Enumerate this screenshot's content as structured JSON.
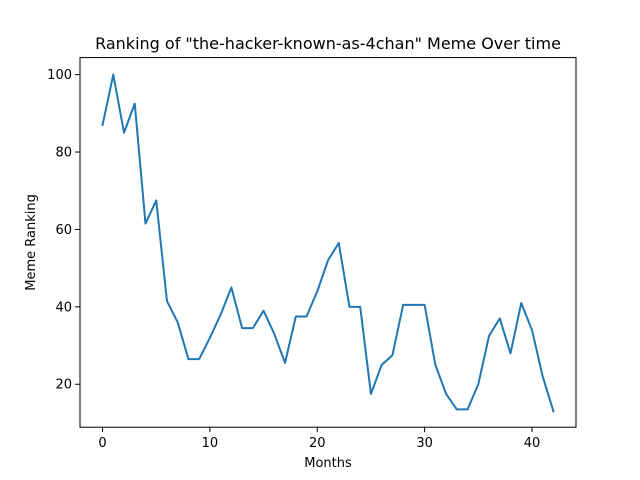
{
  "chart_data": {
    "type": "line",
    "title": "Ranking of \"the-hacker-known-as-4chan\" Meme Over time",
    "xlabel": "Months",
    "ylabel": "Meme Ranking",
    "xlim": [
      -2.1,
      44.1
    ],
    "ylim": [
      8.9,
      104.4
    ],
    "xticks": [
      0,
      10,
      20,
      30,
      40
    ],
    "yticks": [
      20,
      40,
      60,
      80,
      100
    ],
    "grid": false,
    "legend": "none",
    "series": [
      {
        "color": "#1f77b4",
        "x": [
          0,
          1,
          2,
          3,
          4,
          5,
          6,
          7,
          8,
          9,
          10,
          11,
          12,
          13,
          14,
          15,
          16,
          17,
          18,
          19,
          20,
          21,
          22,
          23,
          24,
          25,
          26,
          27,
          28,
          29,
          30,
          31,
          32,
          33,
          34,
          35,
          36,
          37,
          38,
          39,
          40,
          41,
          42
        ],
        "y": [
          87,
          100,
          85,
          92.5,
          61.5,
          67.5,
          41.5,
          36,
          26.5,
          26.5,
          32,
          38,
          45,
          34.5,
          34.5,
          39,
          33,
          25.5,
          37.5,
          37.5,
          44,
          52,
          56.5,
          40,
          40,
          17.5,
          25,
          27.5,
          40.5,
          40.5,
          40.5,
          25,
          17.5,
          13.5,
          13.5,
          20,
          32.5,
          37,
          28,
          41,
          34,
          22,
          13
        ]
      }
    ]
  }
}
